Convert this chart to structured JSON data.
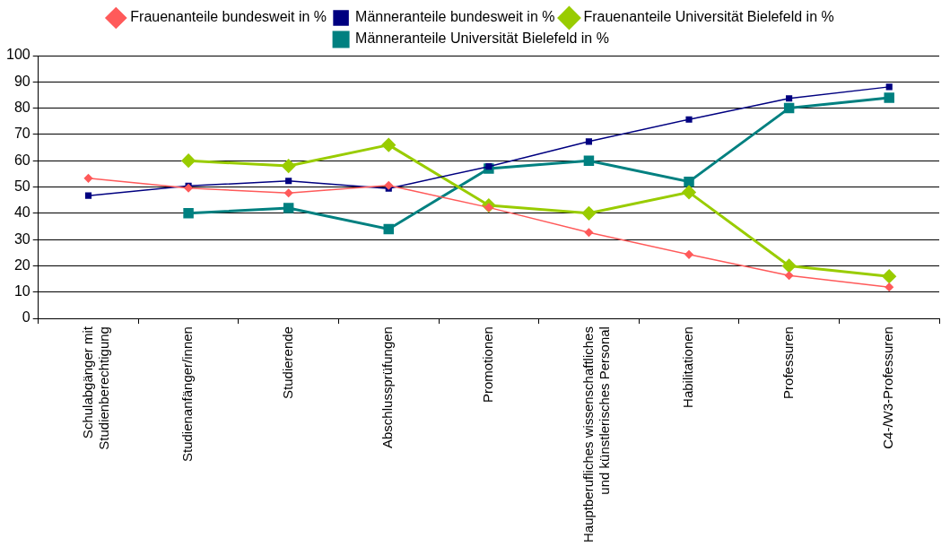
{
  "chart_data": {
    "type": "line",
    "categories": [
      "Schulabgänger mit Studienberechtigung",
      "Studienanfänger/innen",
      "Studierende",
      "Abschlussprüfungen",
      "Promotionen",
      "Hauptberufliches wissenschaftliches und künstlerisches Personal",
      "Habilitationen",
      "Professuren",
      "C4-/W3-Professuren"
    ],
    "series": [
      {
        "name": "Frauenanteile bundesweit in %",
        "color": "#ff5a5a",
        "marker": "diamond",
        "values": [
          53.3,
          49.6,
          47.7,
          50.6,
          42.2,
          32.7,
          24.3,
          16.3,
          11.9
        ]
      },
      {
        "name": "Männeranteile bundesweit in %",
        "color": "#000080",
        "marker": "square",
        "values": [
          46.7,
          50.4,
          52.3,
          49.4,
          57.8,
          67.3,
          75.7,
          83.7,
          88.1
        ]
      },
      {
        "name": "Frauenanteile Universität Bielefeld in %",
        "color": "#99cc00",
        "marker": "diamond",
        "values": [
          null,
          60,
          58,
          66,
          43,
          40,
          48,
          20,
          16
        ]
      },
      {
        "name": "Männeranteile Universität Bielefeld in %",
        "color": "#008080",
        "marker": "square",
        "values": [
          null,
          40,
          42,
          34,
          57,
          60,
          52,
          80,
          84
        ]
      }
    ],
    "ylim": [
      0,
      100
    ],
    "yticks": [
      0,
      10,
      20,
      30,
      40,
      50,
      60,
      70,
      80,
      90,
      100
    ],
    "grid": "y",
    "legend": "top",
    "line_style": "solid"
  }
}
